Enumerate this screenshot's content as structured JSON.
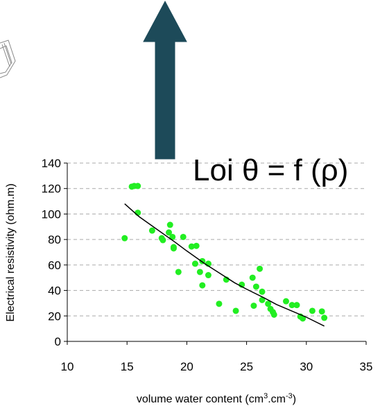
{
  "chart_data": {
    "type": "scatter",
    "annotation": "Loi θ = f (ρ)",
    "ylabel": "Electrical resistivity (ohm.m)",
    "xlabel": [
      "volume water content (cm",
      "3",
      ".cm",
      "-3",
      ")"
    ],
    "xlim": [
      10,
      35
    ],
    "xticks": [
      10,
      15,
      20,
      25,
      30,
      35
    ],
    "ylim": [
      0,
      140
    ],
    "yticks": [
      0,
      20,
      40,
      60,
      80,
      100,
      120,
      140
    ],
    "grid": true,
    "series": [
      {
        "kind": "points",
        "color": "#22ee22",
        "x": [
          14.8,
          15.4,
          15.6,
          15.9,
          15.9,
          17.1,
          17.9,
          18.0,
          18.6,
          18.5,
          18.8,
          18.9,
          18.9,
          19.3,
          19.7,
          20.4,
          20.8,
          20.7,
          21.1,
          21.3,
          21.3,
          21.8,
          21.8,
          22.7,
          23.3,
          24.1,
          24.6,
          25.5,
          25.6,
          25.8,
          26.1,
          26.3,
          26.3,
          26.8,
          27.0,
          27.2,
          27.3,
          28.3,
          28.8,
          29.2,
          29.5,
          29.7,
          30.5,
          31.3,
          31.5
        ],
        "values": [
          81,
          121.5,
          122,
          122,
          101,
          87,
          81,
          79.5,
          91.5,
          85.5,
          82,
          74,
          73,
          54.5,
          82,
          74.5,
          75,
          61,
          54.5,
          63,
          44,
          61,
          52,
          29.5,
          48.5,
          24,
          44.5,
          50,
          28,
          43,
          57,
          32.5,
          39,
          29.5,
          25.5,
          23,
          21,
          31.5,
          28.5,
          28.5,
          19.5,
          18,
          24,
          23.5,
          18.5
        ]
      },
      {
        "kind": "line",
        "color": "#000000",
        "x": [
          14.8,
          16,
          17.5,
          19,
          20,
          21.5,
          22.5,
          24,
          25,
          26.5,
          27.5,
          29,
          30,
          31.5
        ],
        "values": [
          108,
          98,
          88,
          78,
          71,
          61,
          55,
          46,
          41,
          34,
          29,
          23,
          19,
          12
        ]
      }
    ]
  }
}
